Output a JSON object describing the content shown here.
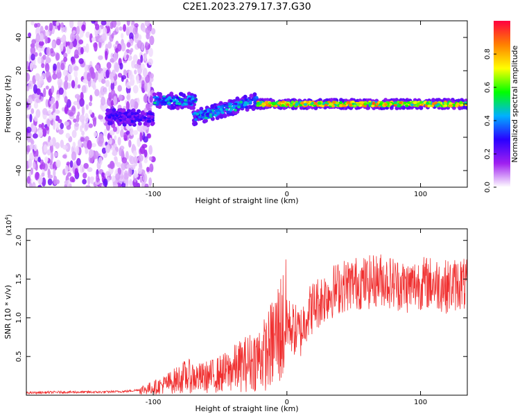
{
  "title": "C2E1.2023.279.17.37.G30",
  "chart_data": [
    {
      "type": "heatmap",
      "xlabel": "Height of straight line (km)",
      "ylabel": "Frequency (Hz)",
      "xlim": [
        -195,
        135
      ],
      "ylim": [
        -50,
        50
      ],
      "xticks": [
        -100,
        0,
        100
      ],
      "yticks": [
        -40,
        -20,
        0,
        20,
        40
      ],
      "colorbar": {
        "label": "Normalized spectral amplitude",
        "range": [
          0.0,
          1.0
        ],
        "ticks": [
          "0.0",
          "0.2",
          "0.4",
          "0.6",
          "0.8"
        ],
        "colormap": [
          "#ffffff",
          "#a020f0",
          "#2a00ff",
          "#00b0ff",
          "#00ff00",
          "#ffff00",
          "#ff8000",
          "#ff0040"
        ]
      },
      "regions": [
        {
          "x": [
            -195,
            -100
          ],
          "description_freq_range": [
            -50,
            50
          ],
          "amplitude": 0.1
        },
        {
          "x": [
            -135,
            -100
          ],
          "freq_center": -8,
          "amplitude": 0.3
        },
        {
          "x": [
            -100,
            -68
          ],
          "freq_center": 2,
          "amplitude": 0.5
        },
        {
          "x": [
            -70,
            -22
          ],
          "freq_center": -4,
          "amplitude": 0.5
        },
        {
          "x": [
            -22,
            135
          ],
          "freq_center": 0,
          "amplitude": 0.9
        }
      ]
    },
    {
      "type": "line",
      "xlabel": "Height of straight line (km)",
      "ylabel": "SNR (10 * v/v)",
      "y_multiplier": "(x10",
      "y_multiplier_exp": "4",
      "y_multiplier_close": ")",
      "xlim": [
        -195,
        135
      ],
      "ylim": [
        0,
        2.15
      ],
      "xticks": [
        -100,
        0,
        100
      ],
      "yticks": [
        "0.5",
        "1.0",
        "1.5",
        "2.0"
      ],
      "series": [
        {
          "color": "#f03030",
          "x": [
            -195,
            -170,
            -140,
            -120,
            -105,
            -95,
            -85,
            -75,
            -65,
            -55,
            -45,
            -35,
            -25,
            -15,
            -10,
            -5,
            0,
            5,
            10,
            15,
            20,
            30,
            40,
            50,
            60,
            70,
            80,
            90,
            100,
            110,
            120,
            130,
            135
          ],
          "y": [
            0.03,
            0.04,
            0.04,
            0.05,
            0.08,
            0.12,
            0.18,
            0.25,
            0.22,
            0.25,
            0.3,
            0.38,
            0.45,
            0.55,
            0.7,
            0.85,
            0.95,
            0.85,
            0.8,
            1.05,
            1.15,
            1.3,
            1.4,
            1.45,
            1.45,
            1.5,
            1.45,
            1.4,
            1.45,
            1.45,
            1.4,
            1.45,
            1.4
          ]
        }
      ]
    }
  ],
  "colors": {
    "line": "#f03030",
    "axis": "#000000"
  }
}
